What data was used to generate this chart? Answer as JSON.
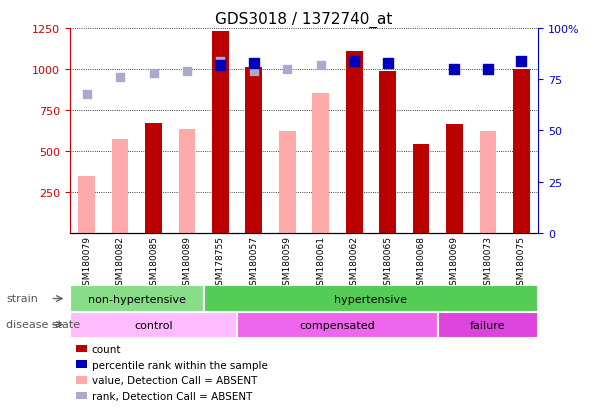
{
  "title": "GDS3018 / 1372740_at",
  "samples": [
    "GSM180079",
    "GSM180082",
    "GSM180085",
    "GSM180089",
    "GSM178755",
    "GSM180057",
    "GSM180059",
    "GSM180061",
    "GSM180062",
    "GSM180065",
    "GSM180068",
    "GSM180069",
    "GSM180073",
    "GSM180075"
  ],
  "count_values": [
    null,
    null,
    670,
    null,
    1230,
    1010,
    null,
    null,
    1110,
    990,
    545,
    665,
    null,
    1000
  ],
  "value_absent": [
    345,
    575,
    null,
    635,
    null,
    null,
    620,
    855,
    null,
    null,
    null,
    null,
    620,
    null
  ],
  "percentile_rank": [
    null,
    null,
    null,
    null,
    82,
    83,
    null,
    null,
    84,
    83,
    null,
    80,
    80,
    84
  ],
  "rank_absent": [
    68,
    76,
    78,
    79,
    84,
    79,
    80,
    82,
    null,
    null,
    null,
    null,
    null,
    null
  ],
  "left_ylim": [
    0,
    1250
  ],
  "left_yticks": [
    250,
    500,
    750,
    1000,
    1250
  ],
  "right_ylim": [
    0,
    100
  ],
  "right_yticks": [
    0,
    25,
    50,
    75,
    100
  ],
  "strain_groups": [
    {
      "label": "non-hypertensive",
      "start": 0,
      "end": 4,
      "color": "#88dd88"
    },
    {
      "label": "hypertensive",
      "start": 4,
      "end": 14,
      "color": "#55cc55"
    }
  ],
  "disease_groups": [
    {
      "label": "control",
      "start": 0,
      "end": 5,
      "color": "#ffbbff"
    },
    {
      "label": "compensated",
      "start": 5,
      "end": 11,
      "color": "#ee66ee"
    },
    {
      "label": "failure",
      "start": 11,
      "end": 14,
      "color": "#dd44dd"
    }
  ],
  "bar_width": 0.5,
  "count_color": "#bb0000",
  "value_absent_color": "#ffaaaa",
  "percentile_color": "#0000bb",
  "rank_absent_color": "#aaaacc",
  "grid_color": "#000000",
  "left_axis_color": "#cc0000",
  "right_axis_color": "#0000cc",
  "legend_items": [
    {
      "color": "#bb0000",
      "label": "count"
    },
    {
      "color": "#0000bb",
      "label": "percentile rank within the sample"
    },
    {
      "color": "#ffaaaa",
      "label": "value, Detection Call = ABSENT"
    },
    {
      "color": "#aaaacc",
      "label": "rank, Detection Call = ABSENT"
    }
  ]
}
